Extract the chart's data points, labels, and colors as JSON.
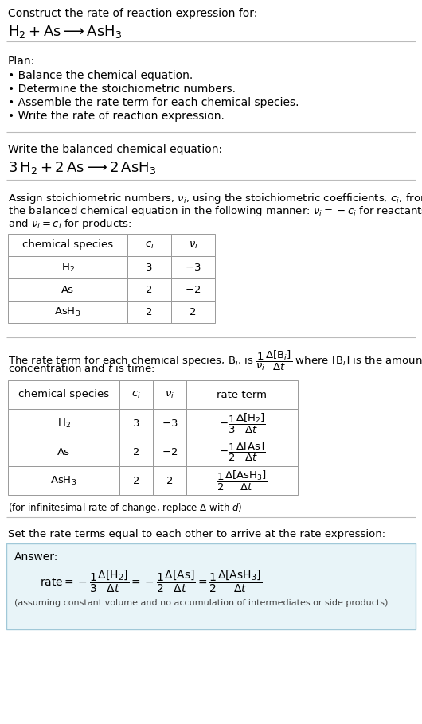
{
  "bg_color": "#ffffff",
  "text_color": "#000000",
  "title_line1": "Construct the rate of reaction expression for:",
  "title_line2_latex": "$\\mathrm{H_2 + As \\longrightarrow AsH_3}$",
  "plan_header": "Plan:",
  "plan_items": [
    "• Balance the chemical equation.",
    "• Determine the stoichiometric numbers.",
    "• Assemble the rate term for each chemical species.",
    "• Write the rate of reaction expression."
  ],
  "balanced_header": "Write the balanced chemical equation:",
  "balanced_eq_latex": "$\\mathrm{3\\,H_2 + 2\\,As \\longrightarrow 2\\,AsH_3}$",
  "stoich_intro_parts": [
    "Assign stoichiometric numbers, $\\nu_i$, using the stoichiometric coefficients, $c_i$, from",
    "the balanced chemical equation in the following manner: $\\nu_i = -c_i$ for reactants",
    "and $\\nu_i = c_i$ for products:"
  ],
  "table1_headers": [
    "chemical species",
    "$c_i$",
    "$\\nu_i$"
  ],
  "table1_rows": [
    [
      "$\\mathrm{H_2}$",
      "3",
      "$-3$"
    ],
    [
      "As",
      "2",
      "$-2$"
    ],
    [
      "$\\mathrm{AsH_3}$",
      "2",
      "2"
    ]
  ],
  "rate_intro_parts": [
    "The rate term for each chemical species, $\\mathrm{B}_i$, is $\\dfrac{1}{\\nu_i}\\dfrac{\\Delta[\\mathrm{B}_i]}{\\Delta t}$ where $[\\mathrm{B}_i]$ is the amount",
    "concentration and $t$ is time:"
  ],
  "table2_headers": [
    "chemical species",
    "$c_i$",
    "$\\nu_i$",
    "rate term"
  ],
  "table2_rows": [
    [
      "$\\mathrm{H_2}$",
      "3",
      "$-3$",
      "$-\\dfrac{1}{3}\\dfrac{\\Delta[\\mathrm{H_2}]}{\\Delta t}$"
    ],
    [
      "As",
      "2",
      "$-2$",
      "$-\\dfrac{1}{2}\\dfrac{\\Delta[\\mathrm{As}]}{\\Delta t}$"
    ],
    [
      "$\\mathrm{AsH_3}$",
      "2",
      "2",
      "$\\dfrac{1}{2}\\dfrac{\\Delta[\\mathrm{AsH_3}]}{\\Delta t}$"
    ]
  ],
  "infinitesimal_note": "(for infinitesimal rate of change, replace $\\Delta$ with $d$)",
  "set_equal_text": "Set the rate terms equal to each other to arrive at the rate expression:",
  "answer_label": "Answer:",
  "answer_rate_latex": "$\\mathrm{rate} = -\\dfrac{1}{3}\\dfrac{\\Delta[\\mathrm{H_2}]}{\\Delta t} = -\\dfrac{1}{2}\\dfrac{\\Delta[\\mathrm{As}]}{\\Delta t} = \\dfrac{1}{2}\\dfrac{\\Delta[\\mathrm{AsH_3}]}{\\Delta t}$",
  "answer_note": "(assuming constant volume and no accumulation of intermediates or side products)",
  "answer_box_color": "#e8f4f8",
  "answer_box_border": "#a0c8d8",
  "separator_color": "#bbbbbb"
}
